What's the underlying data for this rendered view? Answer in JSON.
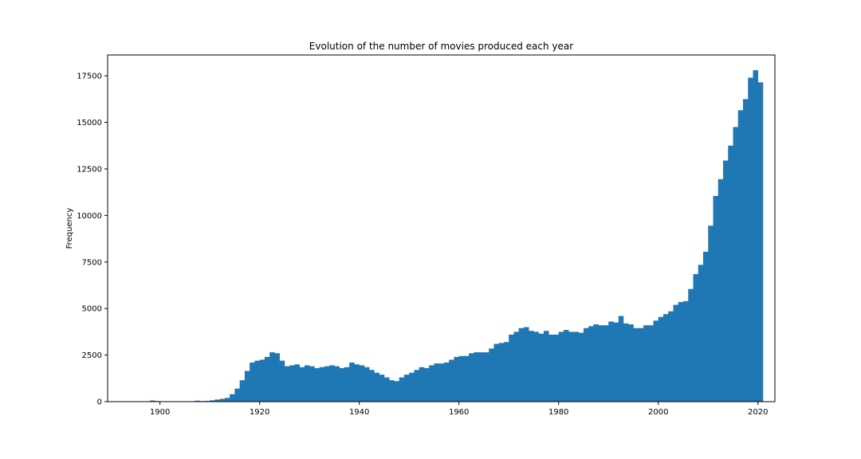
{
  "chart_data": {
    "type": "bar",
    "title": "Evolution of the number of movies produced each year",
    "xlabel": "",
    "ylabel": "Frequency",
    "xlim": [
      1889.5,
      2023.4
    ],
    "ylim": [
      0,
      18620
    ],
    "bar_color": "#1f77b4",
    "grid": false,
    "x_ticks": [
      1900,
      1920,
      1940,
      1960,
      1980,
      2000,
      2020
    ],
    "x_tick_labels": [
      "1900",
      "1920",
      "1940",
      "1960",
      "1980",
      "2000",
      "2020"
    ],
    "y_ticks": [
      0,
      2500,
      5000,
      7500,
      10000,
      12500,
      15000,
      17500
    ],
    "y_tick_labels": [
      "0",
      "2500",
      "5000",
      "7500",
      "10000",
      "12500",
      "15000",
      "17500"
    ],
    "bin_start": 1894,
    "bin_width": 1,
    "values": [
      0,
      0,
      0,
      0,
      60,
      30,
      10,
      10,
      10,
      10,
      10,
      10,
      20,
      50,
      30,
      40,
      70,
      110,
      150,
      200,
      400,
      700,
      1150,
      1650,
      2100,
      2200,
      2250,
      2400,
      2650,
      2600,
      2200,
      1900,
      1950,
      2000,
      1850,
      1950,
      1900,
      1800,
      1850,
      1900,
      1950,
      1900,
      1800,
      1850,
      2100,
      2000,
      1950,
      1850,
      1700,
      1550,
      1450,
      1300,
      1150,
      1100,
      1300,
      1450,
      1550,
      1700,
      1850,
      1800,
      1950,
      2050,
      2050,
      2100,
      2250,
      2400,
      2450,
      2450,
      2600,
      2650,
      2650,
      2650,
      2850,
      3100,
      3150,
      3200,
      3600,
      3750,
      3950,
      4000,
      3800,
      3750,
      3650,
      3800,
      3600,
      3600,
      3750,
      3850,
      3750,
      3750,
      3700,
      3950,
      4050,
      4150,
      4100,
      4100,
      4300,
      4250,
      4600,
      4200,
      4150,
      3950,
      3950,
      4100,
      4100,
      4350,
      4550,
      4700,
      4850,
      5200,
      5350,
      5400,
      6050,
      6850,
      7350,
      8050,
      9450,
      11050,
      11950,
      12950,
      13750,
      14750,
      15650,
      16250,
      17400,
      17800,
      17150
    ]
  }
}
